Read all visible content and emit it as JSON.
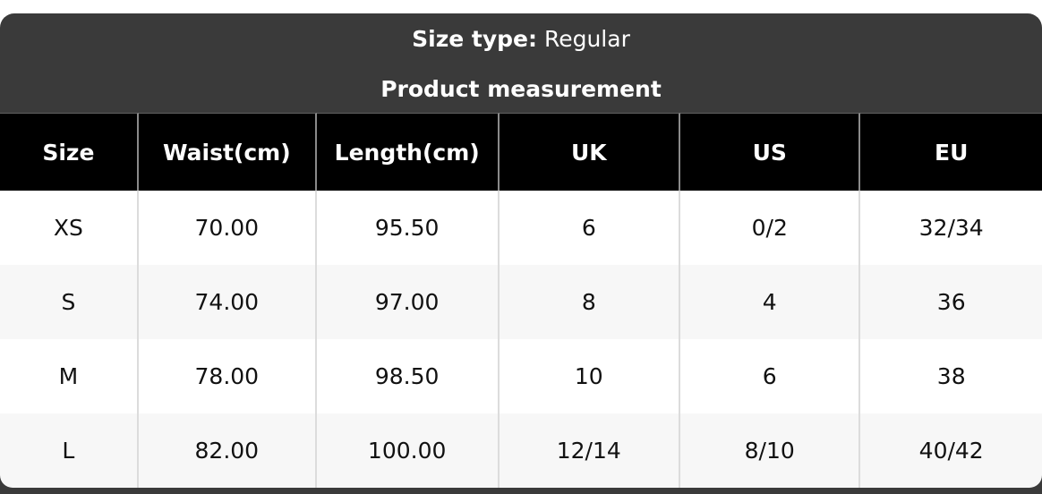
{
  "header": {
    "size_type_label": "Size type:",
    "size_type_value": "Regular",
    "title": "Product measurement"
  },
  "chart_data": {
    "type": "table",
    "title": "Product measurement",
    "size_type": "Regular",
    "columns": [
      "Size",
      "Waist(cm)",
      "Length(cm)",
      "UK",
      "US",
      "EU"
    ],
    "rows": [
      [
        "XS",
        "70.00",
        "95.50",
        "6",
        "0/2",
        "32/34"
      ],
      [
        "S",
        "74.00",
        "97.00",
        "8",
        "4",
        "36"
      ],
      [
        "M",
        "78.00",
        "98.50",
        "10",
        "6",
        "38"
      ],
      [
        "L",
        "82.00",
        "100.00",
        "12/14",
        "8/10",
        "40/42"
      ]
    ]
  },
  "colors": {
    "card_bg": "#3a3a3a",
    "header_row_bg": "#000000",
    "row_bg": "#ffffff",
    "row_alt_bg": "#f7f7f7",
    "header_text": "#ffffff",
    "body_text": "#111111",
    "header_divider": "#8a8a8a",
    "body_divider": "#dcdcdc"
  }
}
